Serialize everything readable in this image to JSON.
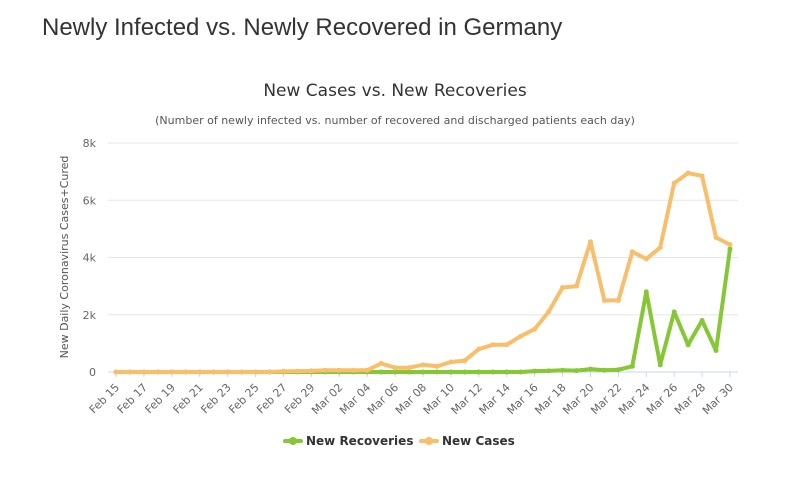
{
  "page": {
    "heading": "Newly Infected vs. Newly Recovered in Germany"
  },
  "chart_data": {
    "type": "line",
    "title": "New Cases vs. New Recoveries",
    "subtitle": "(Number of newly infected vs. number of recovered and discharged patients each day)",
    "ylabel": "New Daily Coronavirus Cases+Cured",
    "xlabel": "",
    "ylim": [
      0,
      8000
    ],
    "yticks": [
      0,
      2000,
      4000,
      6000,
      8000
    ],
    "ytick_labels": [
      "0",
      "2k",
      "4k",
      "6k",
      "8k"
    ],
    "grid": true,
    "legend": "bottom-center",
    "x": [
      "Feb 15",
      "Feb 16",
      "Feb 17",
      "Feb 18",
      "Feb 19",
      "Feb 20",
      "Feb 21",
      "Feb 22",
      "Feb 23",
      "Feb 24",
      "Feb 25",
      "Feb 26",
      "Feb 27",
      "Feb 28",
      "Feb 29",
      "Mar 01",
      "Mar 02",
      "Mar 03",
      "Mar 04",
      "Mar 05",
      "Mar 06",
      "Mar 07",
      "Mar 08",
      "Mar 09",
      "Mar 10",
      "Mar 11",
      "Mar 12",
      "Mar 13",
      "Mar 14",
      "Mar 15",
      "Mar 16",
      "Mar 17",
      "Mar 18",
      "Mar 19",
      "Mar 20",
      "Mar 21",
      "Mar 22",
      "Mar 23",
      "Mar 24",
      "Mar 25",
      "Mar 26",
      "Mar 27",
      "Mar 28",
      "Mar 29",
      "Mar 30"
    ],
    "xtick_labels": [
      "Feb 15",
      "Feb 17",
      "Feb 19",
      "Feb 21",
      "Feb 23",
      "Feb 25",
      "Feb 27",
      "Feb 29",
      "Mar 02",
      "Mar 04",
      "Mar 06",
      "Mar 08",
      "Mar 10",
      "Mar 12",
      "Mar 14",
      "Mar 16",
      "Mar 18",
      "Mar 20",
      "Mar 22",
      "Mar 24",
      "Mar 26",
      "Mar 28",
      "Mar 30"
    ],
    "series": [
      {
        "name": "New Recoveries",
        "color": "#85c734",
        "values": [
          0,
          0,
          0,
          0,
          0,
          0,
          0,
          0,
          0,
          0,
          0,
          0,
          0,
          0,
          0,
          0,
          0,
          0,
          0,
          0,
          0,
          0,
          0,
          0,
          0,
          0,
          0,
          0,
          0,
          0,
          30,
          40,
          60,
          50,
          100,
          60,
          80,
          200,
          2800,
          250,
          2100,
          950,
          1800,
          750,
          4300
        ]
      },
      {
        "name": "New Cases",
        "color": "#f9be6a",
        "values": [
          0,
          0,
          0,
          0,
          0,
          0,
          0,
          0,
          0,
          0,
          0,
          5,
          20,
          30,
          40,
          60,
          60,
          60,
          60,
          300,
          150,
          150,
          250,
          200,
          350,
          400,
          800,
          950,
          950,
          1250,
          1500,
          2100,
          2950,
          3000,
          4550,
          2500,
          2500,
          4200,
          3950,
          4350,
          6600,
          6950,
          6850,
          4700,
          4450
        ]
      }
    ]
  }
}
